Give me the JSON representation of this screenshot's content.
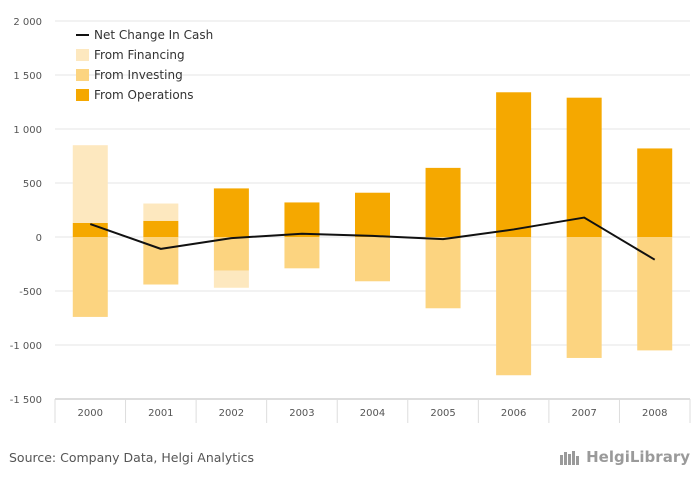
{
  "chart_data": {
    "type": "bar",
    "stacked": true,
    "categories": [
      "2000",
      "2001",
      "2002",
      "2003",
      "2004",
      "2005",
      "2006",
      "2007",
      "2008"
    ],
    "series": [
      {
        "name": "From Operations",
        "type": "bar",
        "color": "#f5a800",
        "values": [
          130,
          150,
          450,
          320,
          410,
          640,
          1340,
          1290,
          820
        ]
      },
      {
        "name": "From Investing",
        "type": "bar",
        "color": "#fcd480",
        "values": [
          -740,
          -440,
          -310,
          -290,
          -410,
          -660,
          -1280,
          -1120,
          -1050
        ]
      },
      {
        "name": "From Financing",
        "type": "bar",
        "color": "#fde8bf",
        "values": [
          720,
          160,
          -160,
          0,
          0,
          0,
          0,
          0,
          0
        ]
      },
      {
        "name": "Net Change In Cash",
        "type": "line",
        "color": "#111111",
        "values": [
          120,
          -110,
          -10,
          30,
          10,
          -20,
          70,
          180,
          -210
        ]
      }
    ],
    "yticks": [
      "2 000",
      "1 500",
      "1 000",
      "500",
      "0",
      "-500",
      "-1 000",
      "-1 500"
    ],
    "ytick_values": [
      2000,
      1500,
      1000,
      500,
      0,
      -500,
      -1000,
      -1500
    ],
    "ylim": [
      -1500,
      2000
    ],
    "grid": true,
    "legend_position": "top-left",
    "legend_order": [
      "Net Change In Cash",
      "From Financing",
      "From Investing",
      "From Operations"
    ]
  },
  "footer": {
    "source": "Source: Company Data, Helgi Analytics",
    "brand": "HelgiLibrary"
  }
}
